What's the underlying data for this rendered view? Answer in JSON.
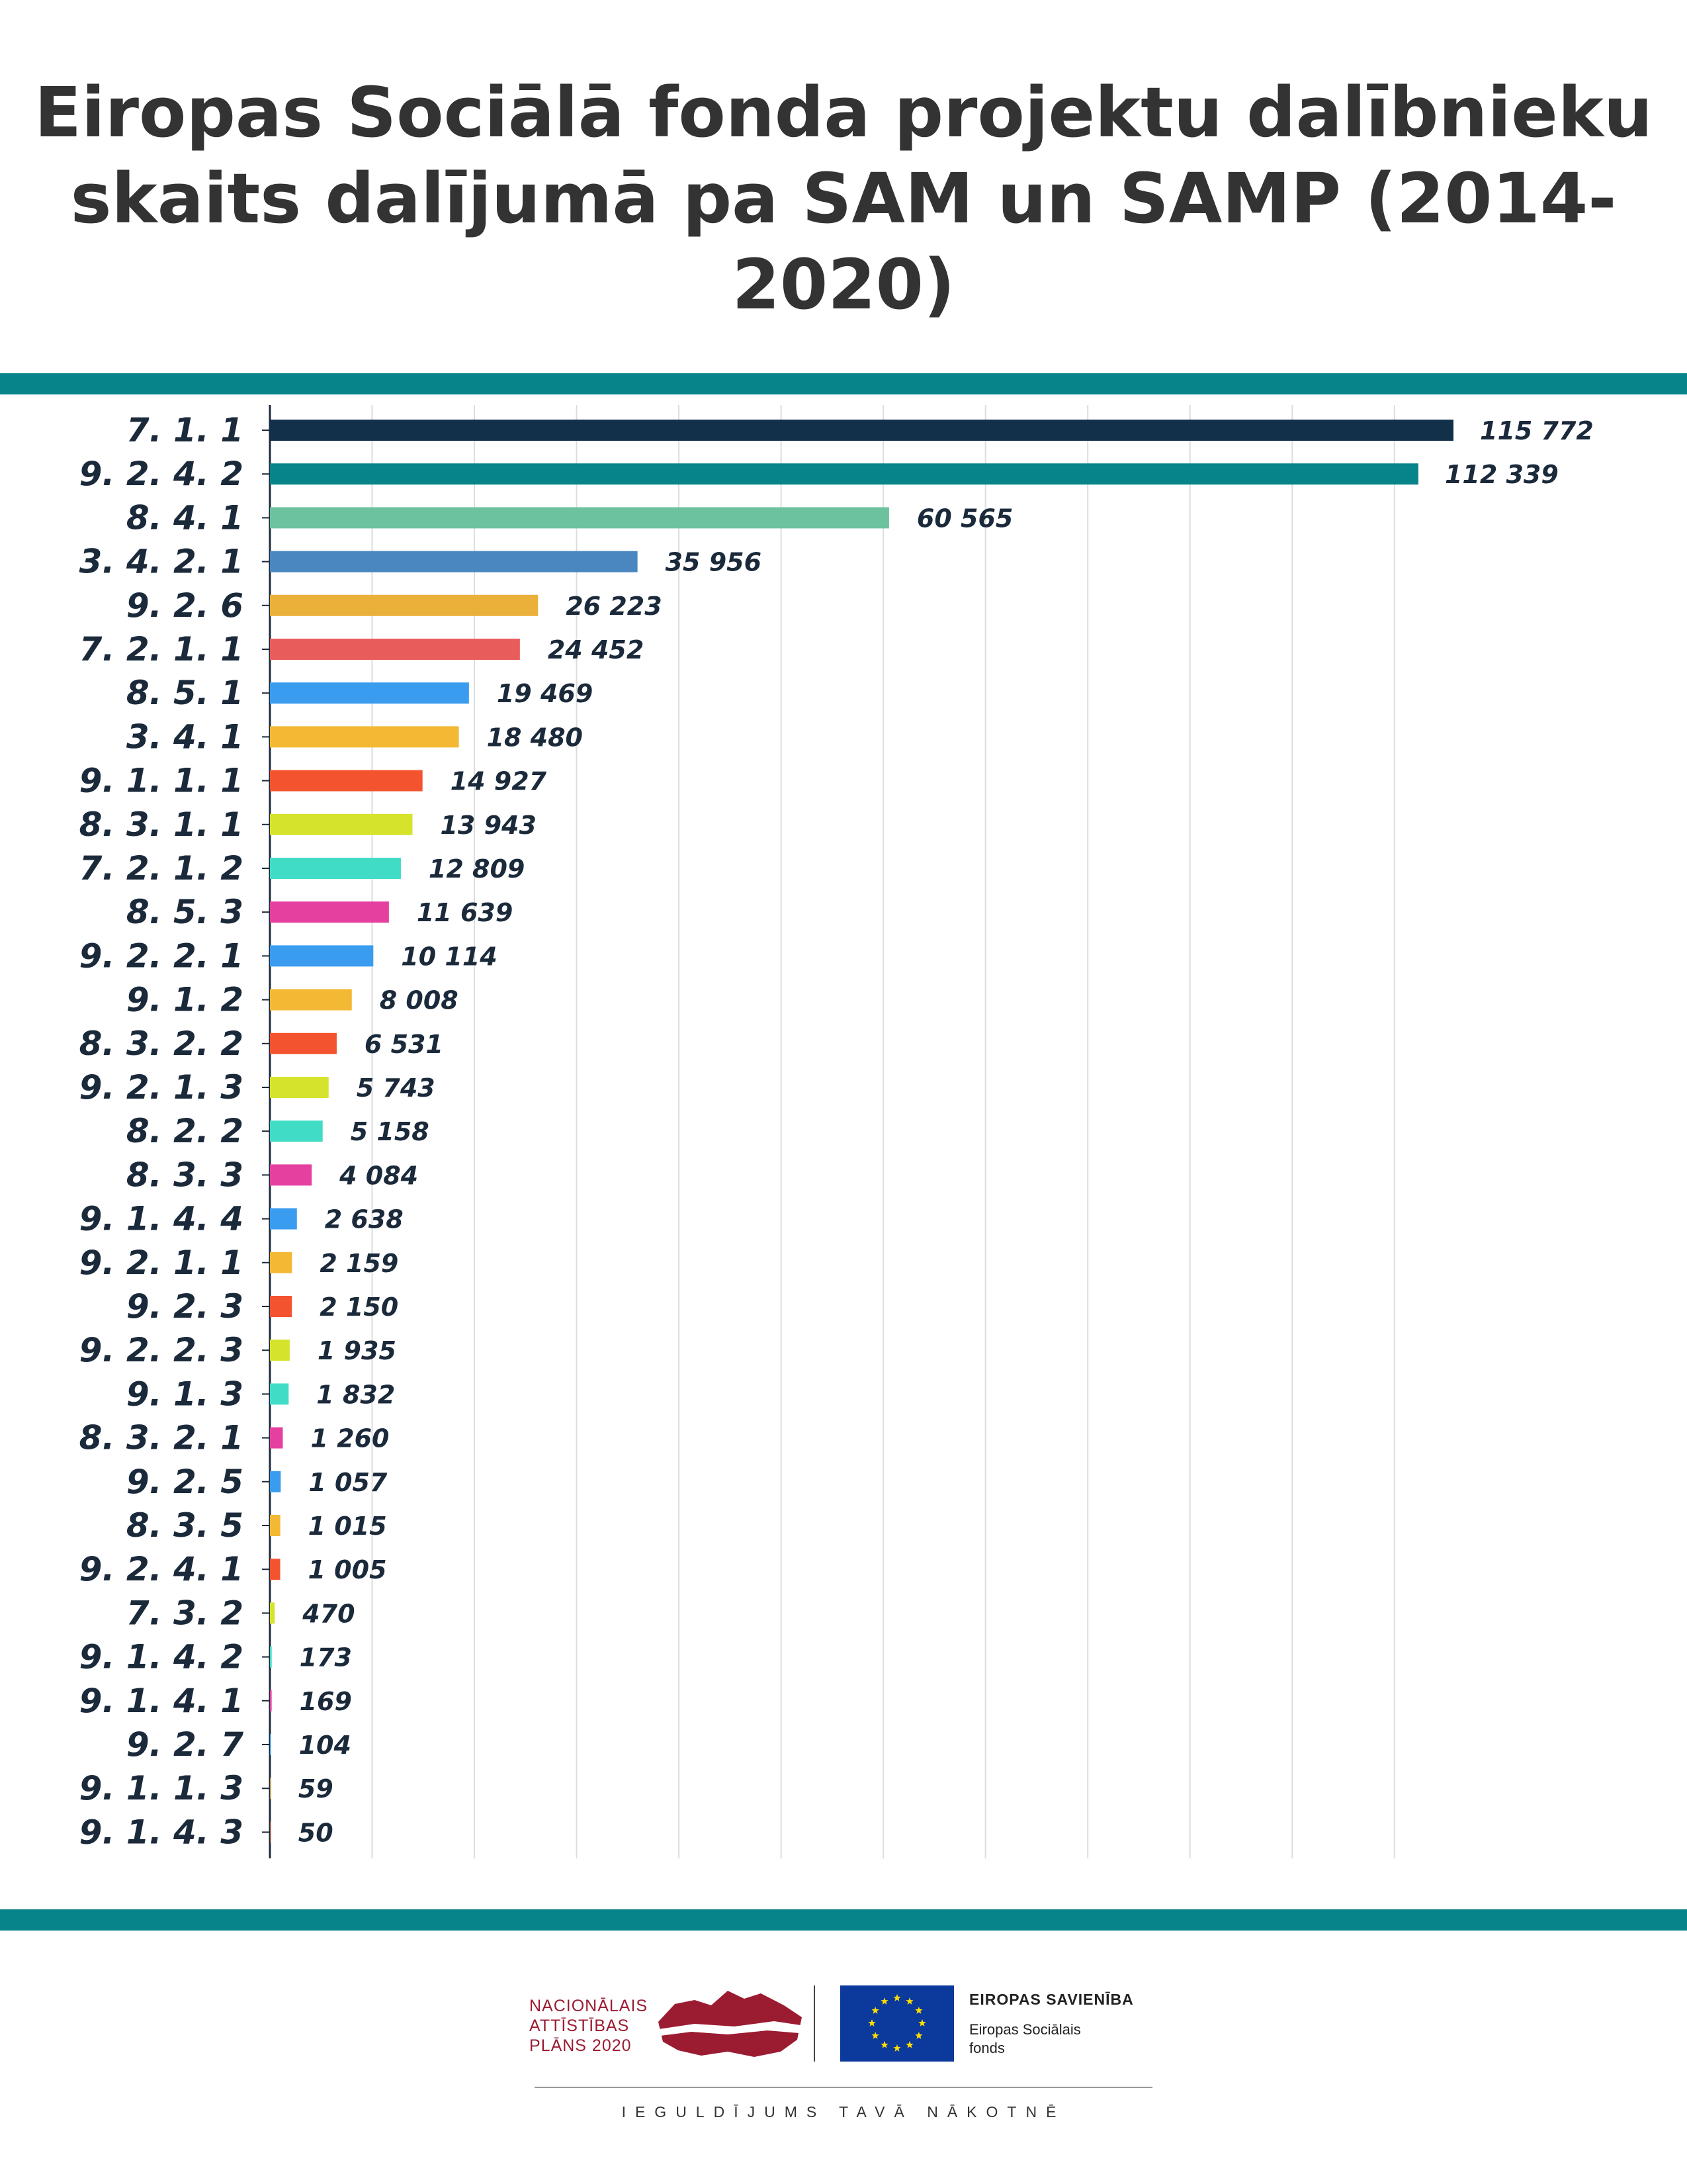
{
  "title": {
    "line1": "Eiropas Sociālā fonda projektu dalībnieku",
    "line2": "skaits dalījumā pa SAM un SAMP (2014-2020)"
  },
  "chart_data": {
    "type": "bar",
    "orientation": "horizontal",
    "title": "Eiropas Sociālā fonda projektu dalībnieku skaits dalījumā pa SAM un SAMP (2014-2020)",
    "xlim": [
      0,
      140000
    ],
    "grid": true,
    "legend": "none",
    "categories": [
      "7. 1. 1",
      "9. 2. 4. 2",
      "8. 4. 1",
      "3. 4. 2. 1",
      "9. 2. 6",
      "7. 2. 1. 1",
      "8. 5. 1",
      "3. 4. 1",
      "9. 1. 1. 1",
      "8. 3. 1. 1",
      "7. 2. 1. 2",
      "8. 5. 3",
      "9. 2. 2. 1",
      "9. 1. 2",
      "8. 3. 2. 2",
      "9. 2. 1. 3",
      "8. 2. 2",
      "8. 3. 3",
      "9. 1. 4. 4",
      "9. 2. 1. 1",
      "9. 2. 3",
      "9. 2. 2. 3",
      "9. 1. 3",
      "8. 3. 2. 1",
      "9. 2. 5",
      "8. 3. 5",
      "9. 2. 4. 1",
      "7. 3. 2",
      "9. 1. 4. 2",
      "9. 1. 4. 1",
      "9. 2. 7",
      "9. 1. 1. 3",
      "9. 1. 4. 3"
    ],
    "values": [
      115772,
      112339,
      60565,
      35956,
      26223,
      24452,
      19469,
      18480,
      14927,
      13943,
      12809,
      11639,
      10114,
      8008,
      6531,
      5743,
      5158,
      4084,
      2638,
      2159,
      2150,
      1935,
      1832,
      1260,
      1057,
      1015,
      1005,
      470,
      173,
      169,
      104,
      59,
      50
    ],
    "labels": [
      "115 772",
      "112 339",
      "60 565",
      "35 956",
      "26 223",
      "24 452",
      "19 469",
      "18 480",
      "14 927",
      "13 943",
      "12 809",
      "11 639",
      "10 114",
      "8 008",
      "6 531",
      "5 743",
      "5 158",
      "4 084",
      "2 638",
      "2 159",
      "2 150",
      "1 935",
      "1 832",
      "1 260",
      "1 057",
      "1 015",
      "1 005",
      "470",
      "173",
      "169",
      "104",
      "59",
      "50"
    ],
    "colors": [
      "#12304a",
      "#07838a",
      "#6cc29f",
      "#4a86c0",
      "#eab03a",
      "#e95c5c",
      "#3a9cef",
      "#f3b834",
      "#f4532f",
      "#d6e32c",
      "#40dcc6",
      "#e540a0",
      "#3a9cef",
      "#f3b834",
      "#f4532f",
      "#d6e32c",
      "#40dcc6",
      "#e540a0",
      "#3a9cef",
      "#f3b834",
      "#f4532f",
      "#d6e32c",
      "#40dcc6",
      "#e540a0",
      "#3a9cef",
      "#f3b834",
      "#f4532f",
      "#d6e32c",
      "#40dcc6",
      "#e540a0",
      "#3a9cef",
      "#f3b834",
      "#f4532f"
    ]
  },
  "footer": {
    "npl": {
      "line1": "NACIONĀLAIS",
      "line2": "ATTĪSTĪBAS",
      "line3": "PLĀNS 2020"
    },
    "eu": {
      "title": "EIROPAS SAVIENĪBA",
      "line1": "Eiropas Sociālais",
      "line2": "fonds"
    },
    "slogan": "IEGULDĪJUMS TAVĀ NĀKOTNĒ"
  },
  "colors": {
    "band": "#07838a",
    "text": "#333333",
    "label": "#1b2a3b",
    "npl_red": "#9b1c31",
    "eu_blue": "#0b3a9c",
    "eu_star": "#ffdd00"
  }
}
